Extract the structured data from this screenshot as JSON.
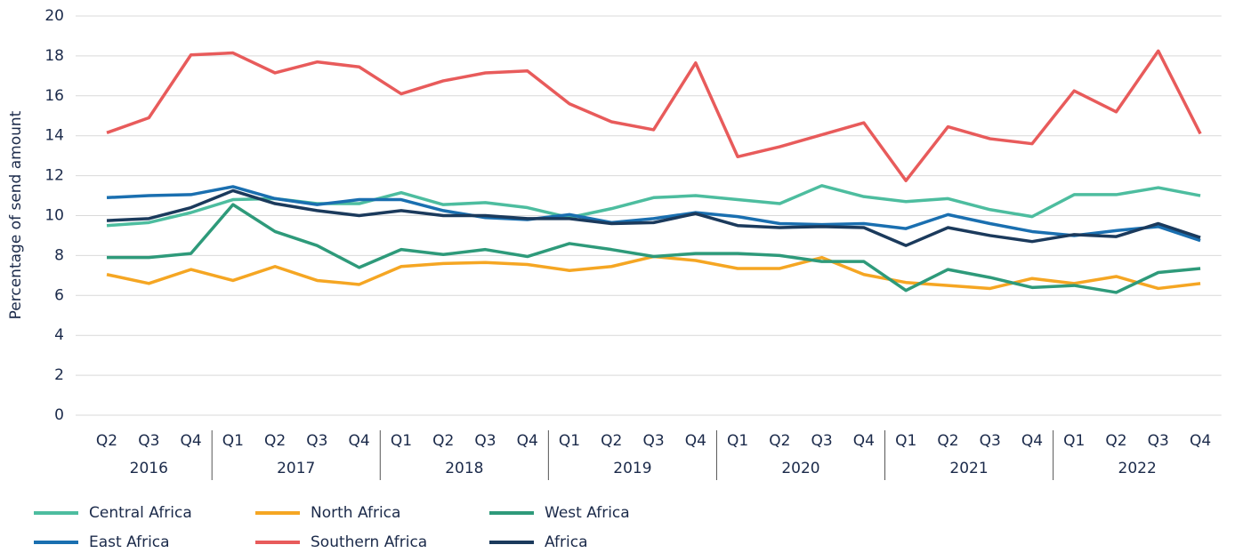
{
  "chart_data": {
    "type": "line",
    "y_label": "Percentage of send amount",
    "categories": [
      "Q2",
      "Q3",
      "Q4",
      "Q1",
      "Q2",
      "Q3",
      "Q4",
      "Q1",
      "Q2",
      "Q3",
      "Q4",
      "Q1",
      "Q2",
      "Q3",
      "Q4",
      "Q1",
      "Q2",
      "Q3",
      "Q4",
      "Q1",
      "Q2",
      "Q3",
      "Q4",
      "Q1",
      "Q2",
      "Q3",
      "Q4"
    ],
    "groups": [
      {
        "label": "2016",
        "size": 3
      },
      {
        "label": "2017",
        "size": 4
      },
      {
        "label": "2018",
        "size": 4
      },
      {
        "label": "2019",
        "size": 4
      },
      {
        "label": "2020",
        "size": 4
      },
      {
        "label": "2021",
        "size": 4
      },
      {
        "label": "2022",
        "size": 4
      }
    ],
    "series": [
      {
        "name": "Central Africa",
        "color": "#4dbd9f",
        "values": [
          9.5,
          9.65,
          10.15,
          10.8,
          10.85,
          10.6,
          10.6,
          11.15,
          10.55,
          10.65,
          10.4,
          9.9,
          10.35,
          10.9,
          11.0,
          10.8,
          10.6,
          11.5,
          10.95,
          10.7,
          10.85,
          10.3,
          9.95,
          11.05,
          11.05,
          11.4,
          11.0
        ]
      },
      {
        "name": "East Africa",
        "color": "#1a6fb0",
        "values": [
          10.9,
          11.0,
          11.05,
          11.45,
          10.85,
          10.55,
          10.8,
          10.8,
          10.25,
          9.9,
          9.8,
          10.05,
          9.65,
          9.85,
          10.15,
          9.95,
          9.6,
          9.55,
          9.6,
          9.35,
          10.05,
          9.6,
          9.2,
          9.0,
          9.25,
          9.45,
          8.75
        ]
      },
      {
        "name": "North Africa",
        "color": "#f5a623",
        "values": [
          7.05,
          6.6,
          7.3,
          6.75,
          7.45,
          6.75,
          6.55,
          7.45,
          7.6,
          7.65,
          7.55,
          7.25,
          7.45,
          7.95,
          7.75,
          7.35,
          7.35,
          7.9,
          7.05,
          6.65,
          6.5,
          6.35,
          6.85,
          6.6,
          6.95,
          6.35,
          6.6
        ]
      },
      {
        "name": "Southern Africa",
        "color": "#e85b5b",
        "values": [
          14.15,
          14.9,
          18.05,
          18.15,
          17.15,
          17.7,
          17.45,
          16.1,
          16.75,
          17.15,
          17.25,
          15.6,
          14.7,
          14.3,
          17.65,
          12.95,
          13.45,
          14.05,
          14.65,
          11.75,
          14.45,
          13.85,
          13.6,
          16.25,
          15.2,
          18.25,
          14.1
        ]
      },
      {
        "name": "West Africa",
        "color": "#2e9a7a",
        "values": [
          7.9,
          7.9,
          8.1,
          10.55,
          9.2,
          8.5,
          7.4,
          8.3,
          8.05,
          8.3,
          7.95,
          8.6,
          8.3,
          7.95,
          8.1,
          8.1,
          8.0,
          7.7,
          7.7,
          6.25,
          7.3,
          6.9,
          6.4,
          6.5,
          6.15,
          7.15,
          7.35
        ]
      },
      {
        "name": "Africa",
        "color": "#1b3a5c",
        "values": [
          9.75,
          9.85,
          10.4,
          11.25,
          10.6,
          10.25,
          10.0,
          10.25,
          10.0,
          10.0,
          9.85,
          9.85,
          9.6,
          9.65,
          10.1,
          9.5,
          9.4,
          9.45,
          9.4,
          8.5,
          9.4,
          9.0,
          8.7,
          9.05,
          8.95,
          9.6,
          8.9
        ]
      }
    ],
    "ylim": [
      0,
      20
    ],
    "yticks": [
      0,
      2,
      4,
      6,
      8,
      10,
      12,
      14,
      16,
      18,
      20
    ],
    "grid": true
  }
}
